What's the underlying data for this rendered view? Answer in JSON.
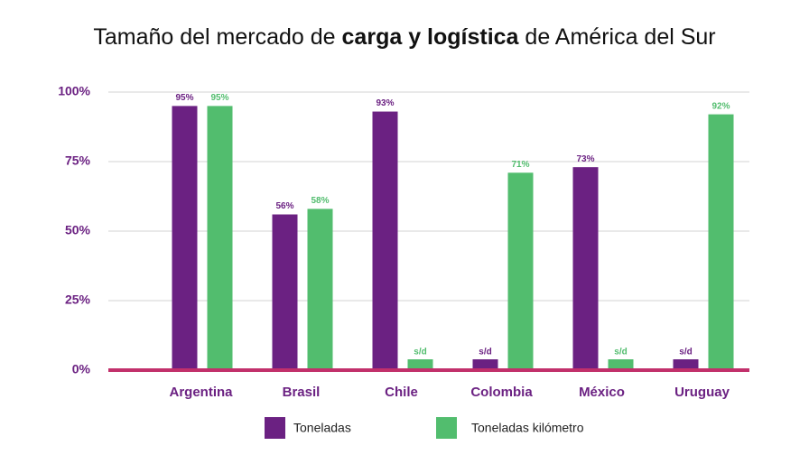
{
  "chart_data": {
    "type": "bar",
    "title": [
      "Tamaño del mercado de ",
      "carga y logística",
      " de América del Sur"
    ],
    "categories": [
      "Argentina",
      "Brasil",
      "Chile",
      "Colombia",
      "México",
      "Uruguay"
    ],
    "series": [
      {
        "name": "Toneladas",
        "color": "#6b2182",
        "values": [
          95,
          56,
          93,
          null,
          73,
          null
        ],
        "value_labels": [
          "95%",
          "56%",
          "93%",
          "s/d",
          "73%",
          "s/d"
        ]
      },
      {
        "name": "Toneladas kilómetro",
        "color": "#52bd6e",
        "values": [
          95,
          58,
          null,
          71,
          null,
          92
        ],
        "value_labels": [
          "95%",
          "58%",
          "s/d",
          "71%",
          "s/d",
          "92%"
        ]
      }
    ],
    "ylim": [
      0,
      100
    ],
    "yticks": [
      {
        "value": 0,
        "label": "0%"
      },
      {
        "value": 25,
        "label": "25%"
      },
      {
        "value": 50,
        "label": "50%"
      },
      {
        "value": 75,
        "label": "75%"
      },
      {
        "value": 100,
        "label": "100%"
      }
    ],
    "grid": true,
    "legend": "bottom"
  }
}
